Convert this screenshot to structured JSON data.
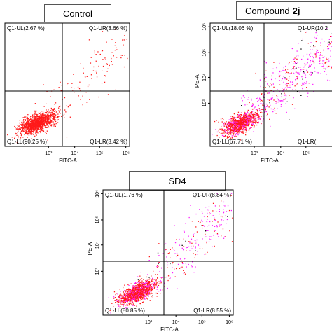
{
  "colors": {
    "live_events": "#ff1a1a",
    "double_positive_events": "#ff1aff",
    "late_events": "#000000"
  },
  "chart_data": [
    {
      "type": "scatter",
      "title": "Control",
      "title_suffix": "",
      "xlabel": "FITC-A",
      "ylabel": "",
      "x_scale": "log",
      "y_scale": "log",
      "xlim": [
        200,
        2000000
      ],
      "ylim": [
        200,
        2000000
      ],
      "x_ticks": [
        "10³",
        "10⁴",
        "10⁵",
        "10⁶"
      ],
      "y_ticks": [],
      "quadrants": [
        {
          "name": "Q1-UL",
          "label": "Q1-UL(2.67 %)",
          "percent": 2.67
        },
        {
          "name": "Q1-UR",
          "label": "Q1-UR(3.66 %)",
          "percent": 3.66
        },
        {
          "name": "Q1-LL",
          "label": "Q1-LL(90.25 %)",
          "percent": 90.25
        },
        {
          "name": "Q1-LR",
          "label": "Q1-LR(3.42 %)",
          "percent": 3.42
        }
      ]
    },
    {
      "type": "scatter",
      "title": "Compound",
      "title_suffix": "2j",
      "xlabel": "FITC-A",
      "ylabel": "PE-A",
      "x_scale": "log",
      "y_scale": "log",
      "xlim": [
        200,
        2000000
      ],
      "ylim": [
        200,
        2000000
      ],
      "x_ticks": [
        "10³",
        "10⁴",
        "10⁵"
      ],
      "y_ticks": [
        "10³",
        "10⁴",
        "10⁵",
        "10⁶"
      ],
      "quadrants": [
        {
          "name": "Q1-UL",
          "label": "Q1-UL(18.06 %)",
          "percent": 18.06
        },
        {
          "name": "Q1-UR",
          "label": "Q1-UR(10.2",
          "percent": null
        },
        {
          "name": "Q1-LL",
          "label": "Q1-LL(67.71 %)",
          "percent": 67.71
        },
        {
          "name": "Q1-LR",
          "label": "Q1-LR(",
          "percent": null
        }
      ]
    },
    {
      "type": "scatter",
      "title": "SD4",
      "title_suffix": "",
      "xlabel": "FITC-A",
      "ylabel": "PE-A",
      "x_scale": "log",
      "y_scale": "log",
      "xlim": [
        200,
        2000000
      ],
      "ylim": [
        200,
        2000000
      ],
      "x_ticks": [
        "10³",
        "10⁴",
        "10⁵",
        "10⁶"
      ],
      "y_ticks": [
        "10³",
        "10⁴",
        "10⁵",
        "10⁶"
      ],
      "quadrants": [
        {
          "name": "Q1-UL",
          "label": "Q1-UL(1.76 %)",
          "percent": 1.76
        },
        {
          "name": "Q1-UR",
          "label": "Q1-UR(8.84 %)",
          "percent": 8.84
        },
        {
          "name": "Q1-LL",
          "label": "Q1-LL(80.85 %)",
          "percent": 80.85
        },
        {
          "name": "Q1-LR",
          "label": "Q1-LR(8.55 %)",
          "percent": 8.55
        }
      ]
    }
  ]
}
